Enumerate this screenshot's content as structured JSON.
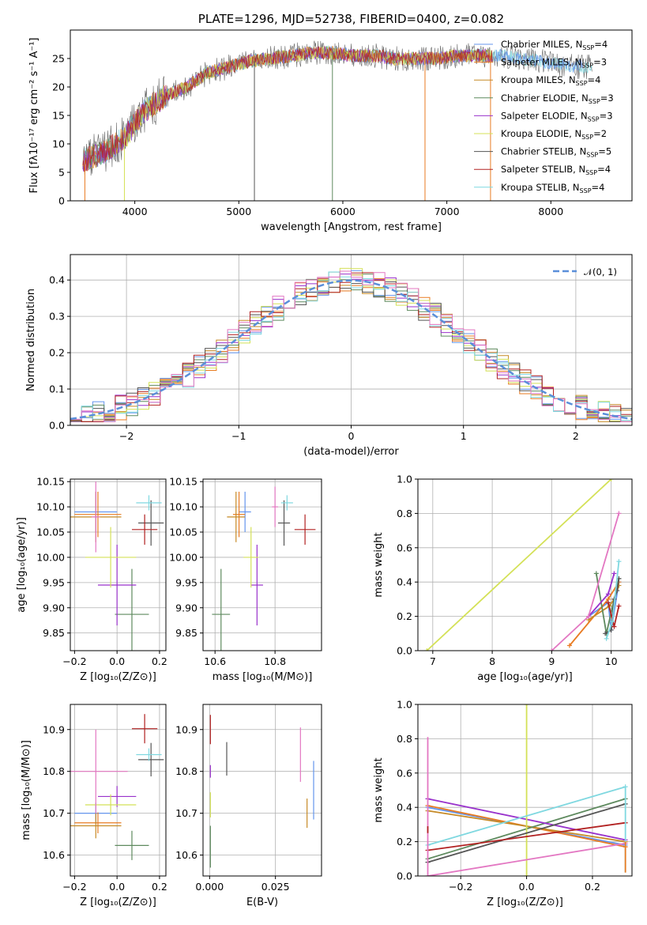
{
  "chart_data": [
    {
      "type": "line",
      "title": "PLATE=1296, MJD=52738, FIBERID=0400, z=0.082",
      "xlabel": "wavelength [Angstrom, rest frame]",
      "ylabel": "Flux [fλ10⁻¹⁷ erg cm⁻² s⁻¹ A⁻¹]",
      "xlim": [
        3380,
        8780
      ],
      "ylim": [
        0,
        30
      ],
      "xticks": [
        4000,
        5000,
        6000,
        7000,
        8000
      ],
      "yticks": [
        0,
        5,
        10,
        15,
        20,
        25
      ],
      "legend_position": "upper-right",
      "spectrum_shape": {
        "x": [
          3500,
          3700,
          3900,
          4100,
          4300,
          4500,
          4700,
          4900,
          5100,
          5300,
          5500,
          5700,
          5900,
          6100,
          6300,
          6500,
          6700,
          6900,
          7100,
          7300,
          7500,
          7700,
          7900,
          8100,
          8300
        ],
        "y": [
          7,
          8.5,
          11,
          16,
          18.5,
          20,
          22.5,
          23.5,
          24.5,
          25,
          25.5,
          26,
          26,
          25.5,
          25.5,
          25,
          25,
          25,
          25.5,
          25.5,
          25.5,
          25,
          24.5,
          24,
          23.5
        ]
      },
      "series": [
        {
          "name": "Chabrier MILES, N_SSP=4",
          "color": "#6495ed"
        },
        {
          "name": "Salpeter MILES, N_SSP=3",
          "color": "#e87b22"
        },
        {
          "name": "Kroupa MILES, N_SSP=4",
          "color": "#c68a26"
        },
        {
          "name": "Chabrier ELODIE, N_SSP=3",
          "color": "#5e8a5e"
        },
        {
          "name": "Salpeter ELODIE, N_SSP=3",
          "color": "#9932cc"
        },
        {
          "name": "Kroupa ELODIE, N_SSP=2",
          "color": "#d4e157"
        },
        {
          "name": "Chabrier STELIB, N_SSP=5",
          "color": "#555555"
        },
        {
          "name": "Salpeter STELIB, N_SSP=4",
          "color": "#b22222"
        },
        {
          "name": "Kroupa STELIB, N_SSP=4",
          "color": "#7fd8e0"
        }
      ],
      "legend": [
        {
          "pre": "Chabrier MILES, N",
          "sub": "SSP",
          "post": "=4"
        },
        {
          "pre": "Salpeter MILES, N",
          "sub": "SSP",
          "post": "=3"
        },
        {
          "pre": "Kroupa MILES, N",
          "sub": "SSP",
          "post": "=4"
        },
        {
          "pre": "Chabrier ELODIE, N",
          "sub": "SSP",
          "post": "=3"
        },
        {
          "pre": "Salpeter ELODIE, N",
          "sub": "SSP",
          "post": "=3"
        },
        {
          "pre": "Kroupa ELODIE, N",
          "sub": "SSP",
          "post": "=2"
        },
        {
          "pre": "Chabrier STELIB, N",
          "sub": "SSP",
          "post": "=5"
        },
        {
          "pre": "Salpeter STELIB, N",
          "sub": "SSP",
          "post": "=4"
        },
        {
          "pre": "Kroupa STELIB, N",
          "sub": "SSP",
          "post": "=4"
        }
      ],
      "drop_lines": [
        {
          "x": 3520,
          "series": 1
        },
        {
          "x": 3900,
          "series": 5
        },
        {
          "x": 5150,
          "series": 6
        },
        {
          "x": 5900,
          "series": 3
        },
        {
          "x": 6790,
          "series": 1
        },
        {
          "x": 7420,
          "series": 1
        }
      ]
    },
    {
      "type": "line",
      "title": "",
      "xlabel": "(data-model)/error",
      "ylabel": "Normed distribution",
      "xlim": [
        -2.5,
        2.5
      ],
      "ylim": [
        0,
        0.47
      ],
      "xticks": [
        -2,
        -1,
        0,
        1,
        2
      ],
      "yticks": [
        0.0,
        0.1,
        0.2,
        0.3,
        0.4
      ],
      "legend": [
        {
          "name": "N(0,1)",
          "label": "𝒩(0, 1)",
          "color": "#5b8fd9"
        }
      ],
      "legend_position": "upper-right",
      "bin_width": 0.1,
      "gaussian": {
        "mean": 0,
        "sigma": 1
      }
    },
    {
      "type": "scatter",
      "xlabel": "Z [log₁₀(Z/Z⊙)]",
      "ylabel": "age  [log₁₀(age/yr)]",
      "xlim": [
        -0.22,
        0.23
      ],
      "ylim": [
        9.815,
        10.155
      ],
      "xticks": [
        -0.2,
        0.0,
        0.2
      ],
      "yticks": [
        9.85,
        9.9,
        9.95,
        10.0,
        10.05,
        10.1,
        10.15
      ],
      "points": [
        {
          "x": -0.1,
          "y": 10.09,
          "xerr": 0.1,
          "yerr": 0.04,
          "series": 0
        },
        {
          "x": -0.09,
          "y": 10.085,
          "xerr": 0.11,
          "yerr": 0.045,
          "series": 1
        },
        {
          "x": -0.1,
          "y": 10.08,
          "xerr": 0.12,
          "yerr": 0.05,
          "series": 2
        },
        {
          "x": 0.07,
          "y": 9.887,
          "xerr": 0.08,
          "yerr": 0.09,
          "series": 3
        },
        {
          "x": 0.0,
          "y": 9.945,
          "xerr": 0.09,
          "yerr": 0.08,
          "series": 4
        },
        {
          "x": -0.03,
          "y": 10.0,
          "xerr": 0.12,
          "yerr": 0.06,
          "series": 5
        },
        {
          "x": 0.16,
          "y": 10.068,
          "xerr": 0.06,
          "yerr": 0.045,
          "series": 6
        },
        {
          "x": 0.13,
          "y": 10.055,
          "xerr": 0.06,
          "yerr": 0.03,
          "series": 7
        },
        {
          "x": 0.15,
          "y": 10.108,
          "xerr": 0.06,
          "yerr": 0.015,
          "series": 8
        },
        {
          "x": -0.1,
          "y": 10.08,
          "xerr": 0.02,
          "yerr": 0.07,
          "series": 9
        }
      ]
    },
    {
      "type": "scatter",
      "xlabel": "mass [log₁₀(M/M⊙)]",
      "ylabel": "",
      "xlim": [
        10.56,
        10.955
      ],
      "ylim": [
        9.815,
        10.155
      ],
      "xticks": [
        10.6,
        10.8
      ],
      "yticks": [
        9.85,
        9.9,
        9.95,
        10.0,
        10.05,
        10.1,
        10.15
      ],
      "points": [
        {
          "x": 10.7,
          "y": 10.09,
          "xerr": 0.02,
          "yerr": 0.04,
          "series": 0
        },
        {
          "x": 10.68,
          "y": 10.085,
          "xerr": 0.02,
          "yerr": 0.045,
          "series": 1
        },
        {
          "x": 10.67,
          "y": 10.08,
          "xerr": 0.03,
          "yerr": 0.05,
          "series": 2
        },
        {
          "x": 10.62,
          "y": 9.887,
          "xerr": 0.03,
          "yerr": 0.09,
          "series": 3
        },
        {
          "x": 10.74,
          "y": 9.945,
          "xerr": 0.02,
          "yerr": 0.08,
          "series": 4
        },
        {
          "x": 10.72,
          "y": 10.0,
          "xerr": 0.025,
          "yerr": 0.06,
          "series": 5
        },
        {
          "x": 10.83,
          "y": 10.068,
          "xerr": 0.02,
          "yerr": 0.045,
          "series": 6
        },
        {
          "x": 10.9,
          "y": 10.055,
          "xerr": 0.035,
          "yerr": 0.03,
          "series": 7
        },
        {
          "x": 10.84,
          "y": 10.108,
          "xerr": 0.02,
          "yerr": 0.015,
          "series": 8
        },
        {
          "x": 10.8,
          "y": 10.1,
          "xerr": 0.01,
          "yerr": 0.04,
          "series": 9
        }
      ]
    },
    {
      "type": "line",
      "xlabel": "age  [log₁₀(age/yr)]",
      "ylabel": "mass weight",
      "xlim": [
        6.75,
        10.35
      ],
      "ylim": [
        0,
        1
      ],
      "xticks": [
        7,
        8,
        9,
        10
      ],
      "yticks": [
        0.0,
        0.2,
        0.4,
        0.6,
        0.8,
        1.0
      ],
      "series": [
        {
          "series": 0,
          "points": [
            [
              9.62,
              0.2
            ],
            [
              9.95,
              0.28
            ],
            [
              10.0,
              0.12
            ],
            [
              10.13,
              0.4
            ]
          ]
        },
        {
          "series": 1,
          "points": [
            [
              9.3,
              0.03
            ],
            [
              9.95,
              0.3
            ],
            [
              10.13,
              0.4
            ]
          ]
        },
        {
          "series": 2,
          "points": [
            [
              9.62,
              0.18
            ],
            [
              9.97,
              0.26
            ],
            [
              10.05,
              0.3
            ],
            [
              10.13,
              0.38
            ]
          ]
        },
        {
          "series": 3,
          "points": [
            [
              9.75,
              0.45
            ],
            [
              9.92,
              0.1
            ],
            [
              10.13,
              0.42
            ]
          ]
        },
        {
          "series": 4,
          "points": [
            [
              9.62,
              0.2
            ],
            [
              9.95,
              0.33
            ],
            [
              10.05,
              0.45
            ]
          ]
        },
        {
          "series": 5,
          "points": [
            [
              6.9,
              0.0
            ],
            [
              10.0,
              1.0
            ]
          ]
        },
        {
          "series": 6,
          "points": [
            [
              9.9,
              0.1
            ],
            [
              10.0,
              0.12
            ],
            [
              10.05,
              0.3
            ],
            [
              10.1,
              0.35
            ],
            [
              10.13,
              0.42
            ]
          ]
        },
        {
          "series": 7,
          "points": [
            [
              9.95,
              0.28
            ],
            [
              10.05,
              0.14
            ],
            [
              10.13,
              0.26
            ]
          ]
        },
        {
          "series": 8,
          "points": [
            [
              9.92,
              0.07
            ],
            [
              10.02,
              0.17
            ],
            [
              10.13,
              0.52
            ]
          ]
        },
        {
          "series": 9,
          "points": [
            [
              9.0,
              0.0
            ],
            [
              9.62,
              0.2
            ],
            [
              10.13,
              0.8
            ]
          ]
        }
      ]
    },
    {
      "type": "scatter",
      "xlabel": "Z [log₁₀(Z/Z⊙)]",
      "ylabel": "mass [log₁₀(M/M⊙)]",
      "xlim": [
        -0.22,
        0.23
      ],
      "ylim": [
        10.55,
        10.96
      ],
      "xticks": [
        -0.2,
        0.0,
        0.2
      ],
      "yticks": [
        10.6,
        10.7,
        10.8,
        10.9
      ],
      "points": [
        {
          "x": -0.1,
          "y": 10.7,
          "xerr": 0.1,
          "yerr": 0.025,
          "series": 0
        },
        {
          "x": -0.09,
          "y": 10.677,
          "xerr": 0.11,
          "yerr": 0.025,
          "series": 1
        },
        {
          "x": -0.1,
          "y": 10.67,
          "xerr": 0.12,
          "yerr": 0.03,
          "series": 2
        },
        {
          "x": 0.07,
          "y": 10.623,
          "xerr": 0.08,
          "yerr": 0.035,
          "series": 3
        },
        {
          "x": 0.0,
          "y": 10.74,
          "xerr": 0.09,
          "yerr": 0.025,
          "series": 4
        },
        {
          "x": -0.03,
          "y": 10.72,
          "xerr": 0.12,
          "yerr": 0.025,
          "series": 5
        },
        {
          "x": 0.16,
          "y": 10.828,
          "xerr": 0.06,
          "yerr": 0.04,
          "series": 6
        },
        {
          "x": 0.13,
          "y": 10.902,
          "xerr": 0.06,
          "yerr": 0.035,
          "series": 7
        },
        {
          "x": 0.15,
          "y": 10.84,
          "xerr": 0.06,
          "yerr": 0.015,
          "series": 8
        },
        {
          "x": -0.1,
          "y": 10.8,
          "xerr": 0.15,
          "yerr": 0.1,
          "series": 9
        }
      ]
    },
    {
      "type": "scatter",
      "xlabel": "E(B-V)",
      "ylabel": "",
      "xlim": [
        -0.0025,
        0.0425
      ],
      "ylim": [
        10.55,
        10.96
      ],
      "xticks": [
        0.0,
        0.025
      ],
      "tick_labels": [
        "0.000",
        "0.025"
      ],
      "yticks": [
        10.6,
        10.7,
        10.8,
        10.9
      ],
      "points": [
        {
          "x": 0.0003,
          "y": 10.9,
          "yerr": 0.035,
          "series": 7
        },
        {
          "x": 0.0003,
          "y": 10.8,
          "yerr": 0.015,
          "series": 4
        },
        {
          "x": 0.0003,
          "y": 10.72,
          "yerr": 0.03,
          "series": 5
        },
        {
          "x": 0.0003,
          "y": 10.62,
          "yerr": 0.05,
          "series": 3
        },
        {
          "x": 0.0065,
          "y": 10.83,
          "yerr": 0.04,
          "series": 6
        },
        {
          "x": 0.0345,
          "y": 10.84,
          "yerr": 0.065,
          "series": 9
        },
        {
          "x": 0.0395,
          "y": 10.755,
          "yerr": 0.07,
          "series": 0
        },
        {
          "x": 0.037,
          "y": 10.7,
          "yerr": 0.035,
          "series": 2
        }
      ]
    },
    {
      "type": "line",
      "xlabel": "Z [log₁₀(Z/Z⊙)]",
      "ylabel": "mass weight",
      "xlim": [
        -0.33,
        0.32
      ],
      "ylim": [
        0,
        1
      ],
      "xticks": [
        -0.2,
        0.0,
        0.2
      ],
      "yticks": [
        0.0,
        0.2,
        0.4,
        0.6,
        0.8,
        1.0
      ],
      "series": [
        {
          "series": 0,
          "points": [
            [
              -0.3,
              0.4
            ],
            [
              0.3,
              0.18
            ]
          ]
        },
        {
          "series": 1,
          "points": [
            [
              -0.3,
              0.41
            ],
            [
              0.3,
              0.17
            ]
          ]
        },
        {
          "series": 2,
          "points": [
            [
              -0.3,
              0.38
            ],
            [
              0.3,
              0.2
            ]
          ]
        },
        {
          "series": 3,
          "points": [
            [
              -0.3,
              0.1
            ],
            [
              0.3,
              0.45
            ]
          ]
        },
        {
          "series": 4,
          "points": [
            [
              -0.3,
              0.45
            ],
            [
              0.3,
              0.21
            ]
          ]
        },
        {
          "series": 5,
          "points": [
            [
              0.0,
              0.0
            ],
            [
              0.0,
              1.0
            ]
          ]
        },
        {
          "series": 6,
          "points": [
            [
              -0.3,
              0.08
            ],
            [
              0.3,
              0.42
            ]
          ]
        },
        {
          "series": 7,
          "points": [
            [
              -0.3,
              0.15
            ],
            [
              0.3,
              0.31
            ]
          ]
        },
        {
          "series": 8,
          "points": [
            [
              -0.3,
              0.18
            ],
            [
              0.3,
              0.52
            ]
          ]
        },
        {
          "series": 9,
          "points": [
            [
              -0.3,
              0.0
            ],
            [
              0.3,
              0.19
            ]
          ]
        }
      ],
      "vertical_spreads": [
        {
          "x": -0.3,
          "series": 9,
          "range": [
            0.0,
            0.81
          ]
        },
        {
          "x": 0.3,
          "series": 8,
          "range": [
            0.02,
            0.52
          ]
        },
        {
          "x": 0.3,
          "series": 1,
          "range": [
            0.02,
            0.2
          ]
        },
        {
          "x": -0.3,
          "series": 7,
          "range": [
            0.25,
            0.29
          ]
        }
      ]
    }
  ]
}
